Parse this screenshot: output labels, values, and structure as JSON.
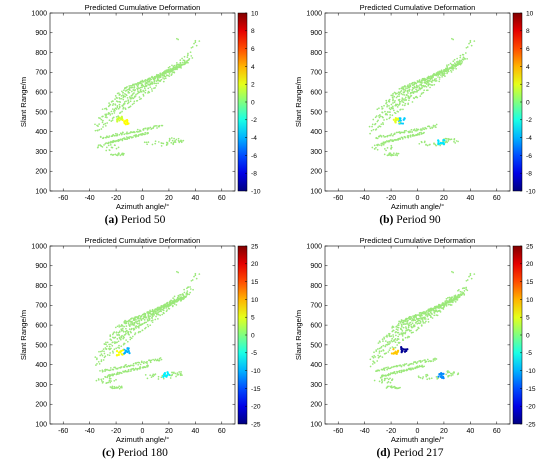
{
  "chart_data": [
    {
      "type": "scatter",
      "title": "Predicted Cumulative Deformation",
      "xlabel": "Azimuth angle/°",
      "ylabel": "Slant Range/m",
      "xlim": [
        -70,
        70
      ],
      "ylim": [
        100,
        1000
      ],
      "xticks": [
        "-60",
        "-40",
        "-20",
        "0",
        "20",
        "40",
        "60"
      ],
      "yticks": [
        "100",
        "200",
        "300",
        "400",
        "500",
        "600",
        "700",
        "800",
        "900",
        "1000"
      ],
      "colorbar": {
        "range": [
          -10,
          10
        ],
        "ticks": [
          "10",
          "8",
          "6",
          "4",
          "2",
          "0",
          "-2",
          "-4",
          "-6",
          "-8",
          "-10"
        ]
      },
      "deformation_hotspots": [
        {
          "x": -13,
          "y": 450,
          "value": 2.5
        },
        {
          "x": -17,
          "y": 465,
          "value": 1.5
        }
      ],
      "caption_label": "(a)",
      "caption_text": "Period 50"
    },
    {
      "type": "scatter",
      "title": "Predicted Cumulative Deformation",
      "xlabel": "Azimuth angle/°",
      "ylabel": "Slant Range/m",
      "xlim": [
        -70,
        70
      ],
      "ylim": [
        100,
        1000
      ],
      "xticks": [
        "-60",
        "-40",
        "-20",
        "0",
        "20",
        "40",
        "60"
      ],
      "yticks": [
        "100",
        "200",
        "300",
        "400",
        "500",
        "600",
        "700",
        "800",
        "900",
        "1000"
      ],
      "colorbar": {
        "range": [
          -10,
          10
        ],
        "ticks": [
          "10",
          "8",
          "6",
          "4",
          "2",
          "0",
          "-2",
          "-4",
          "-6",
          "-8",
          "-10"
        ]
      },
      "deformation_hotspots": [
        {
          "x": -12,
          "y": 455,
          "value": -3.5
        },
        {
          "x": -16,
          "y": 460,
          "value": 2
        },
        {
          "x": 18,
          "y": 350,
          "value": -3
        }
      ],
      "caption_label": "(b)",
      "caption_text": "Period 90"
    },
    {
      "type": "scatter",
      "title": "Predicted Cumulative Deformation",
      "xlabel": "Azimuth angle/°",
      "ylabel": "Slant Range/m",
      "xlim": [
        -70,
        70
      ],
      "ylim": [
        100,
        1000
      ],
      "xticks": [
        "-60",
        "-40",
        "-20",
        "0",
        "20",
        "40",
        "60"
      ],
      "yticks": [
        "100",
        "200",
        "300",
        "400",
        "500",
        "600",
        "700",
        "800",
        "900",
        "1000"
      ],
      "colorbar": {
        "range": [
          -25,
          25
        ],
        "ticks": [
          "25",
          "20",
          "15",
          "10",
          "5",
          "0",
          "-5",
          "-10",
          "-15",
          "-20",
          "-25"
        ]
      },
      "deformation_hotspots": [
        {
          "x": -12,
          "y": 470,
          "value": -10
        },
        {
          "x": -17,
          "y": 460,
          "value": 6
        },
        {
          "x": 18,
          "y": 350,
          "value": -7
        }
      ],
      "caption_label": "(c)",
      "caption_text": "Period 180"
    },
    {
      "type": "scatter",
      "title": "Predicted Cumulative Deformation",
      "xlabel": "Azimuth angle/°",
      "ylabel": "Slant Range/m",
      "xlim": [
        -70,
        70
      ],
      "ylim": [
        100,
        1000
      ],
      "xticks": [
        "-60",
        "-40",
        "-20",
        "0",
        "20",
        "40",
        "60"
      ],
      "yticks": [
        "100",
        "200",
        "300",
        "400",
        "500",
        "600",
        "700",
        "800",
        "900",
        "1000"
      ],
      "colorbar": {
        "range": [
          -25,
          25
        ],
        "ticks": [
          "25",
          "20",
          "15",
          "10",
          "5",
          "0",
          "-5",
          "-10",
          "-15",
          "-20",
          "-25"
        ]
      },
      "deformation_hotspots": [
        {
          "x": -10,
          "y": 475,
          "value": -24
        },
        {
          "x": -17,
          "y": 465,
          "value": 9
        },
        {
          "x": 18,
          "y": 345,
          "value": -12
        }
      ],
      "caption_label": "(d)",
      "caption_text": "Period 217"
    }
  ],
  "colors": {
    "background_field": "#9be87a",
    "colormap": [
      "#00008f",
      "#0000ff",
      "#00ffff",
      "#ffff00",
      "#ff0000",
      "#800000"
    ]
  }
}
